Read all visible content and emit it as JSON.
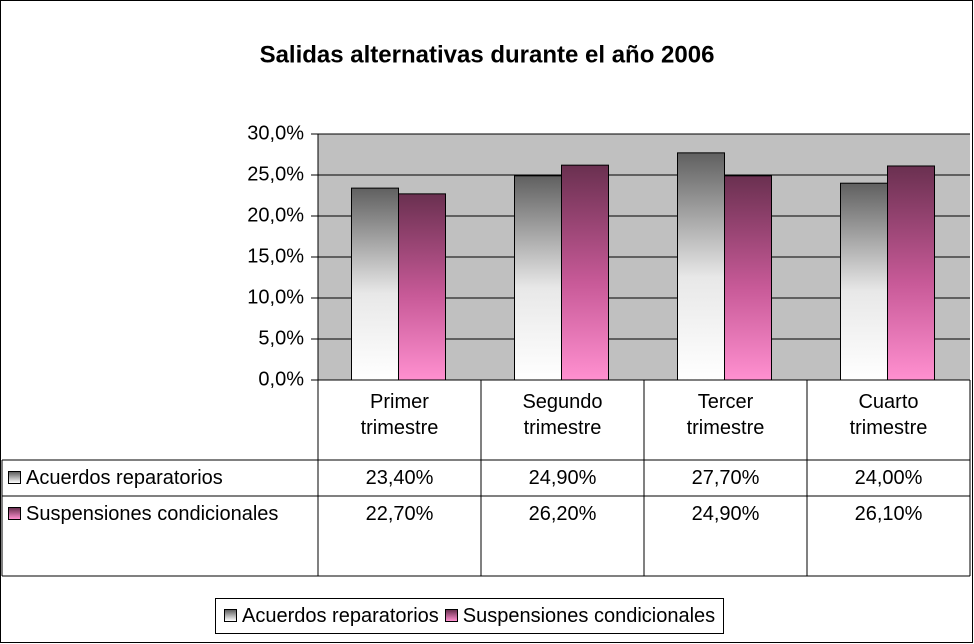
{
  "chart_data": {
    "type": "bar",
    "title": "Salidas alternativas durante el año 2006",
    "categories": [
      "Primer trimestre",
      "Segundo trimestre",
      "Tercer trimestre",
      "Cuarto trimestre"
    ],
    "series": [
      {
        "name": "Acuerdos reparatorios",
        "color": "#707070",
        "values": [
          23.4,
          24.9,
          27.7,
          24.0
        ],
        "value_labels": [
          "23,40%",
          "24,90%",
          "27,70%",
          "24,00%"
        ]
      },
      {
        "name": "Suspensiones condicionales",
        "color": "#ff88cc",
        "values": [
          22.7,
          26.2,
          24.9,
          26.1
        ],
        "value_labels": [
          "22,70%",
          "26,20%",
          "24,90%",
          "26,10%"
        ]
      }
    ],
    "ylim": [
      0,
      30
    ],
    "yticks": [
      {
        "value": 0,
        "label": "0,0%"
      },
      {
        "value": 5,
        "label": "5,0%"
      },
      {
        "value": 10,
        "label": "10,0%"
      },
      {
        "value": 15,
        "label": "15,0%"
      },
      {
        "value": 20,
        "label": "20,0%"
      },
      {
        "value": 25,
        "label": "25,0%"
      },
      {
        "value": 30,
        "label": "30,0%"
      }
    ],
    "grid": true
  }
}
